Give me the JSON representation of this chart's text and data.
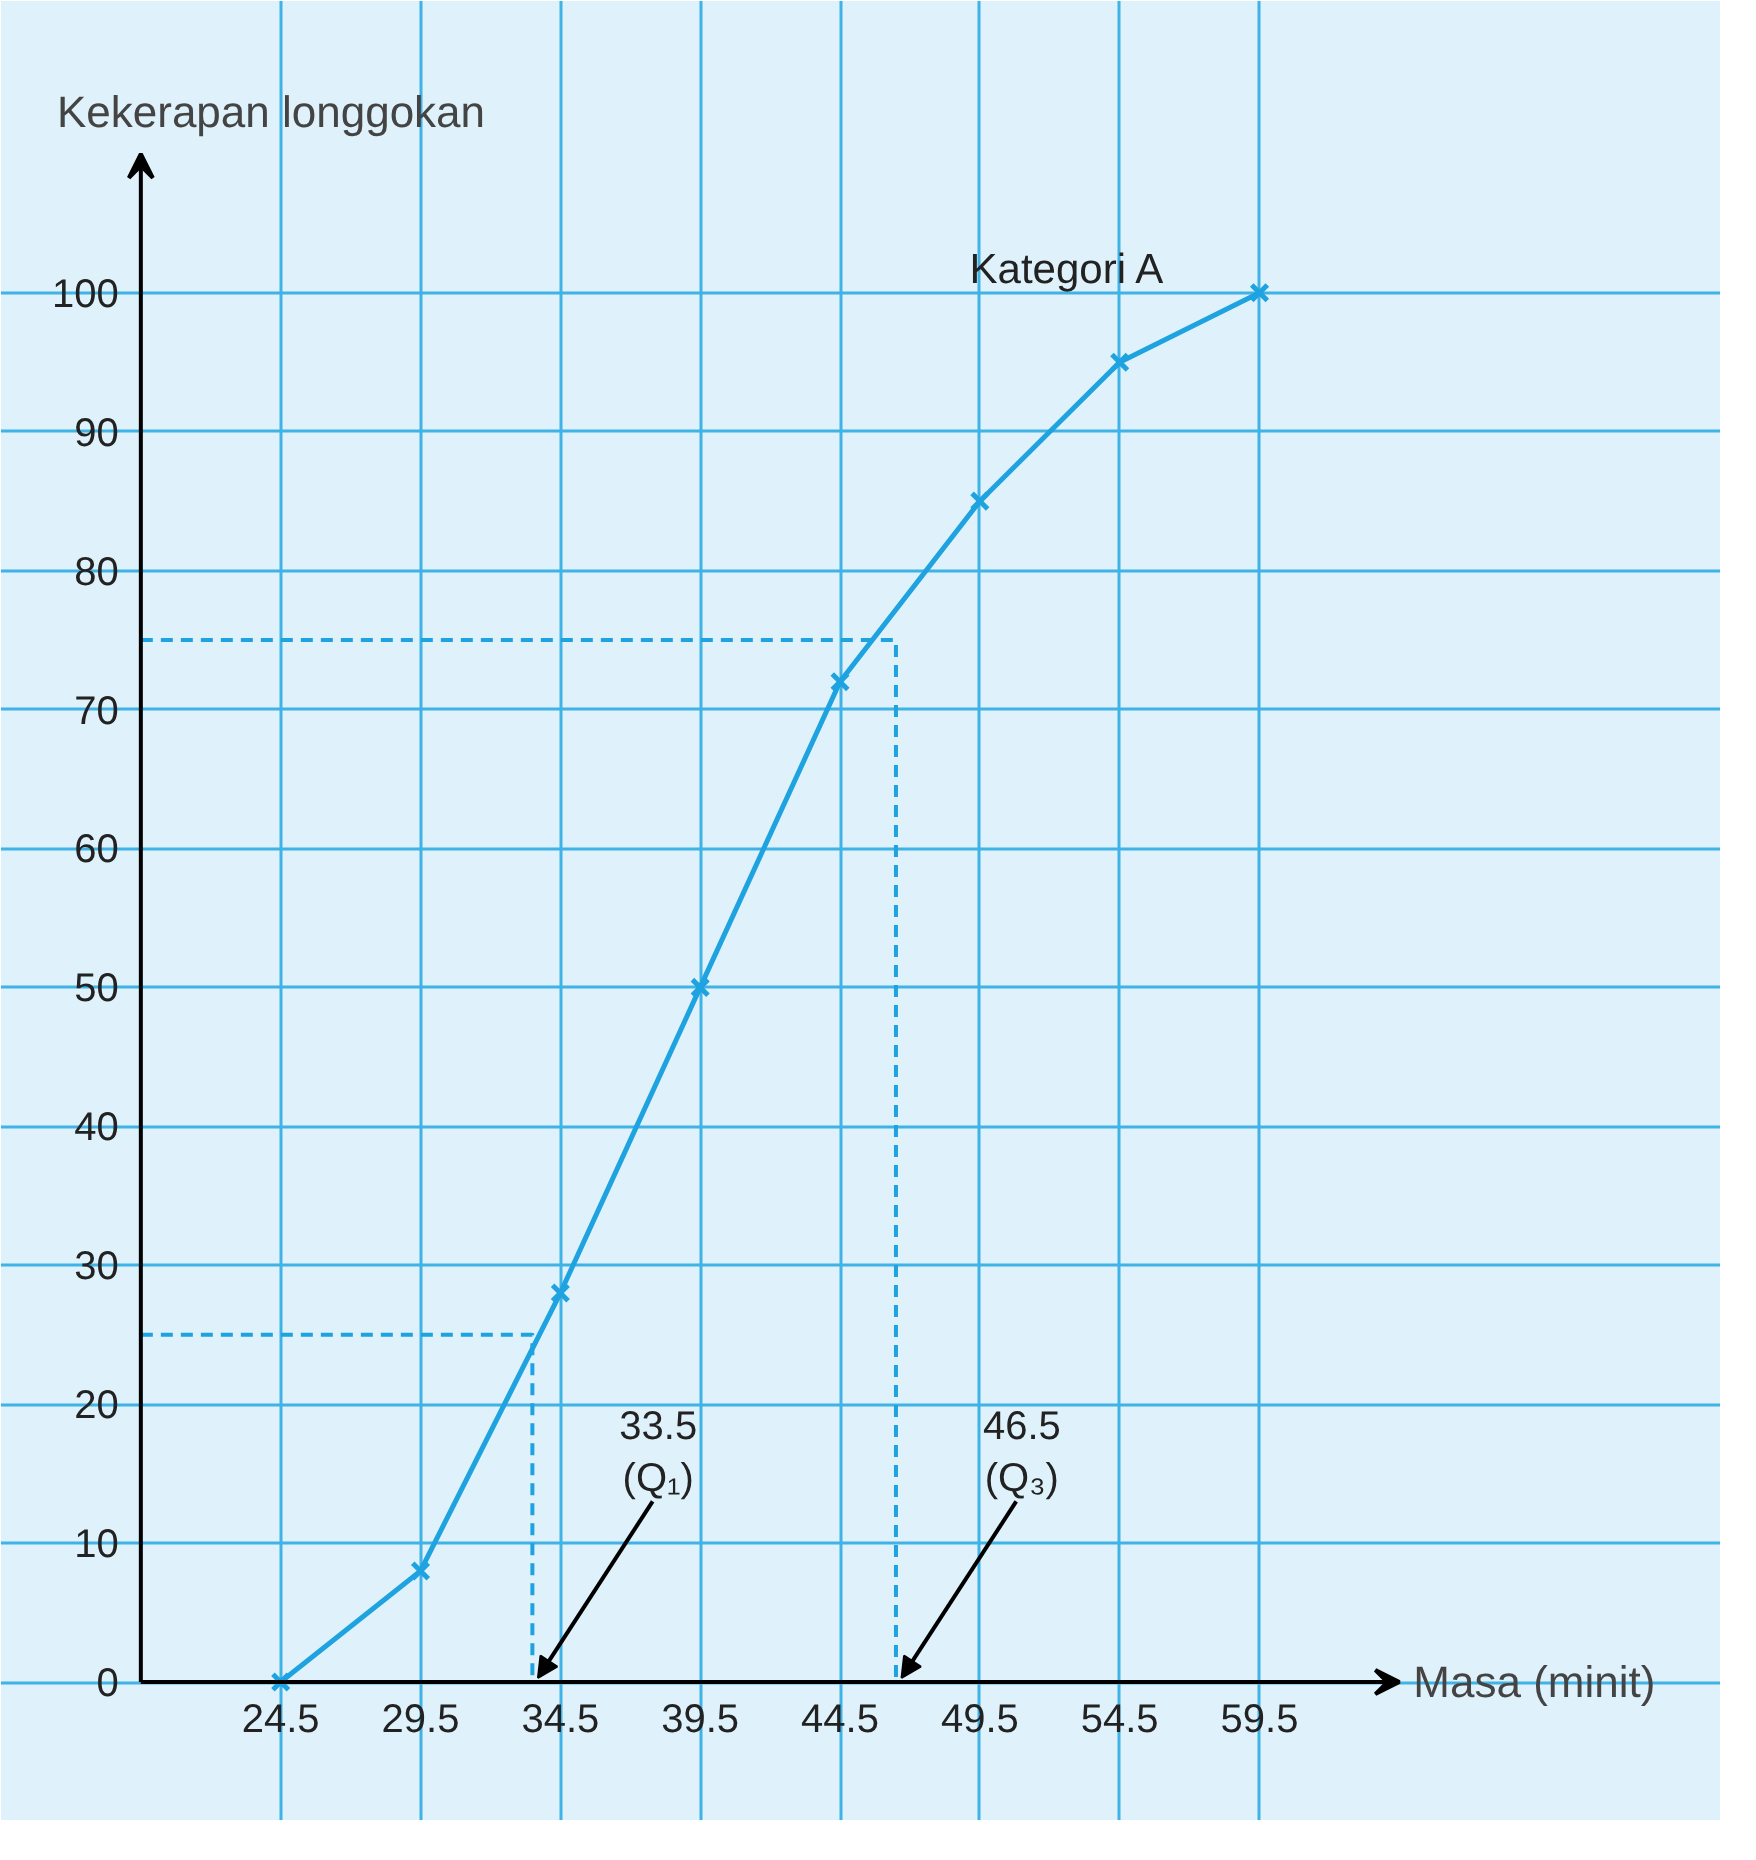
{
  "chart_data": {
    "type": "line",
    "xlabel": "Masa (minit)",
    "ylabel": "Kekerapan longgokan",
    "x": [
      24.5,
      29.5,
      34.5,
      39.5,
      44.5,
      49.5,
      54.5,
      59.5
    ],
    "series": [
      {
        "name": "Kategori A",
        "color": "#1ea3e0",
        "values": [
          0,
          8,
          28,
          50,
          72,
          85,
          95,
          100
        ]
      },
      {
        "type": "line",
        "line_style": "dashed",
        "marker": "none",
        "color": "#1ea3e0",
        "x": [
          19.5,
          33.5,
          33.5
        ],
        "values": [
          25,
          25,
          0
        ]
      },
      {
        "type": "line",
        "line_style": "dashed",
        "marker": "none",
        "color": "#1ea3e0",
        "x": [
          19.5,
          46.5,
          46.5
        ],
        "values": [
          75,
          75,
          0
        ]
      }
    ],
    "marker": "cross",
    "line_style": "solid",
    "xlim": [
      14.5,
      76
    ],
    "ylim": [
      -10,
      121
    ],
    "xticks": [
      24.5,
      29.5,
      34.5,
      39.5,
      44.5,
      49.5,
      54.5,
      59.5
    ],
    "yticks": [
      0,
      10,
      20,
      30,
      40,
      50,
      60,
      70,
      80,
      90,
      100
    ],
    "grid": true,
    "annotations": [
      {
        "text": "33.5\n(Q₁)",
        "x": 33.5,
        "y": 0
      },
      {
        "text": "46.5\n(Q₃)",
        "x": 46.5,
        "y": 0
      }
    ]
  }
}
